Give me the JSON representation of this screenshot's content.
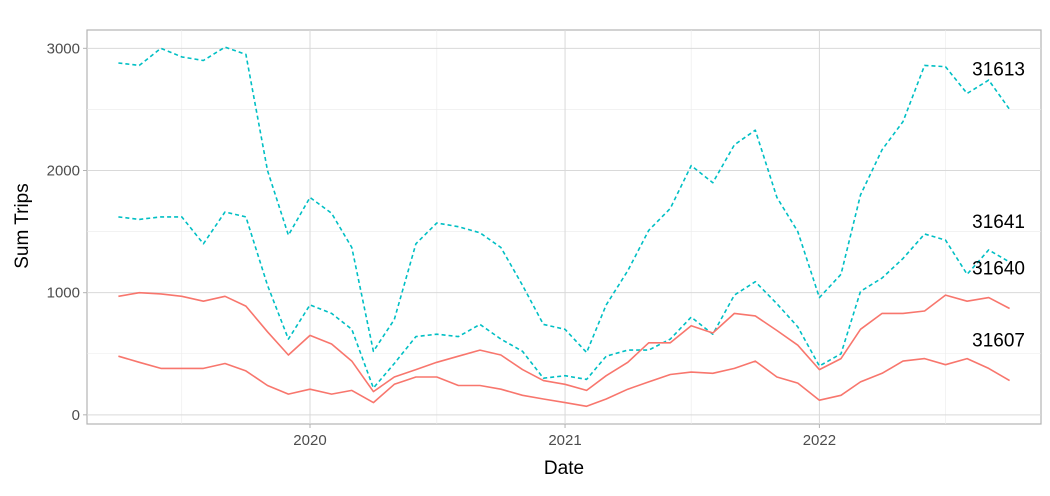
{
  "chart_data": {
    "type": "line",
    "xlabel": "Date",
    "ylabel": "Sum Trips",
    "xlim": [
      "2019-02-15",
      "2022-11-15"
    ],
    "ylim": [
      -75,
      3150
    ],
    "x_ticks": [
      {
        "date": "2020-01-01",
        "label": "2020"
      },
      {
        "date": "2021-01-01",
        "label": "2021"
      },
      {
        "date": "2022-01-01",
        "label": "2022"
      }
    ],
    "y_ticks": [
      {
        "value": 0,
        "label": "0"
      },
      {
        "value": 1000,
        "label": "1000"
      },
      {
        "value": 2000,
        "label": "2000"
      },
      {
        "value": 3000,
        "label": "3000"
      }
    ],
    "x_minor_ticks": [
      "2019-07-01",
      "2020-07-01",
      "2021-07-01",
      "2022-07-01"
    ],
    "y_minor_ticks": [
      500,
      1500,
      2500
    ],
    "grid": true,
    "legend": "none",
    "colors": {
      "solid": "#F8766D",
      "dashed": "#00BFC4"
    },
    "dates": [
      "2019-04-01",
      "2019-05-01",
      "2019-06-01",
      "2019-07-01",
      "2019-08-01",
      "2019-09-01",
      "2019-10-01",
      "2019-11-01",
      "2019-12-01",
      "2020-01-01",
      "2020-02-01",
      "2020-03-01",
      "2020-04-01",
      "2020-05-01",
      "2020-06-01",
      "2020-07-01",
      "2020-08-01",
      "2020-09-01",
      "2020-10-01",
      "2020-11-01",
      "2020-12-01",
      "2021-01-01",
      "2021-02-01",
      "2021-03-01",
      "2021-04-01",
      "2021-05-01",
      "2021-06-01",
      "2021-07-01",
      "2021-08-01",
      "2021-09-01",
      "2021-10-01",
      "2021-11-01",
      "2021-12-01",
      "2022-01-01",
      "2022-02-01",
      "2022-03-01",
      "2022-04-01",
      "2022-05-01",
      "2022-06-01",
      "2022-07-01",
      "2022-08-01",
      "2022-09-01",
      "2022-10-01"
    ],
    "series": [
      {
        "name": "31613",
        "style": "dashed",
        "values": [
          2880,
          2860,
          3000,
          2930,
          2900,
          3010,
          2950,
          2000,
          1470,
          1780,
          1650,
          1370,
          520,
          780,
          1400,
          1570,
          1540,
          1490,
          1370,
          1060,
          740,
          700,
          510,
          900,
          1180,
          1510,
          1690,
          2040,
          1900,
          2210,
          2330,
          1780,
          1500,
          960,
          1150,
          1800,
          2170,
          2400,
          2860,
          2850,
          2630,
          2740,
          2500
        ]
      },
      {
        "name": "31641",
        "style": "dashed",
        "values": [
          1620,
          1600,
          1620,
          1620,
          1400,
          1660,
          1620,
          1060,
          620,
          900,
          830,
          700,
          220,
          420,
          640,
          660,
          640,
          740,
          620,
          520,
          300,
          320,
          290,
          480,
          530,
          530,
          620,
          800,
          660,
          980,
          1090,
          910,
          720,
          400,
          500,
          1010,
          1120,
          1280,
          1480,
          1430,
          1150,
          1350,
          1250
        ]
      },
      {
        "name": "31640",
        "style": "solid",
        "values": [
          970,
          1000,
          990,
          970,
          930,
          970,
          890,
          680,
          490,
          650,
          580,
          440,
          190,
          310,
          370,
          430,
          480,
          530,
          490,
          370,
          280,
          250,
          200,
          320,
          430,
          590,
          590,
          730,
          670,
          830,
          810,
          690,
          570,
          370,
          460,
          700,
          830,
          830,
          850,
          980,
          930,
          960,
          870
        ]
      },
      {
        "name": "31607",
        "style": "solid",
        "values": [
          480,
          430,
          380,
          380,
          380,
          420,
          360,
          240,
          170,
          210,
          170,
          200,
          100,
          250,
          310,
          310,
          240,
          240,
          210,
          160,
          130,
          100,
          70,
          130,
          210,
          270,
          330,
          350,
          340,
          380,
          440,
          310,
          260,
          120,
          160,
          270,
          340,
          440,
          460,
          410,
          460,
          380,
          280
        ]
      }
    ]
  }
}
